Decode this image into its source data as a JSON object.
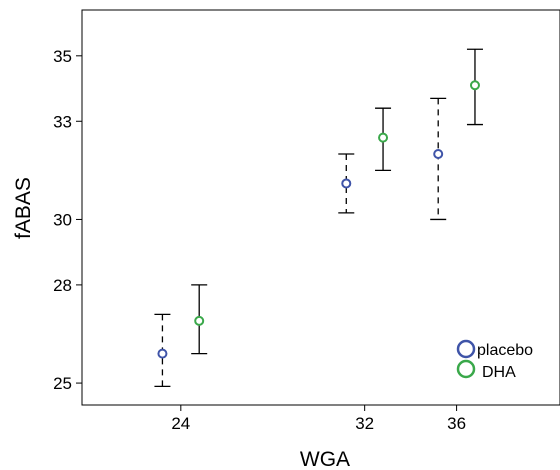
{
  "chart_data": {
    "type": "scatter",
    "xlabel": "WGA",
    "ylabel": "fABAS",
    "x_ticks": [
      24,
      32,
      36
    ],
    "y_ticks": [
      25,
      28,
      30,
      33,
      35
    ],
    "xlim": [
      19.7,
      40.5
    ],
    "ylim": [
      24.33,
      36.4
    ],
    "grid": false,
    "legend_position": "bottom-right",
    "series": [
      {
        "name": "placebo",
        "color": "#3f54a8",
        "error_bar_style": "dashed",
        "points": [
          {
            "x": 23.2,
            "y": 25.9,
            "lower": 24.9,
            "upper": 27.1
          },
          {
            "x": 31.2,
            "y": 31.1,
            "lower": 30.2,
            "upper": 32.0
          },
          {
            "x": 35.2,
            "y": 32.0,
            "lower": 30.0,
            "upper": 33.7
          }
        ]
      },
      {
        "name": "DHA",
        "color": "#3aa84a",
        "error_bar_style": "solid",
        "points": [
          {
            "x": 24.8,
            "y": 26.9,
            "lower": 25.9,
            "upper": 28.0
          },
          {
            "x": 32.8,
            "y": 32.5,
            "lower": 31.5,
            "upper": 33.4
          },
          {
            "x": 36.8,
            "y": 34.1,
            "lower": 32.9,
            "upper": 35.2
          }
        ]
      }
    ]
  }
}
